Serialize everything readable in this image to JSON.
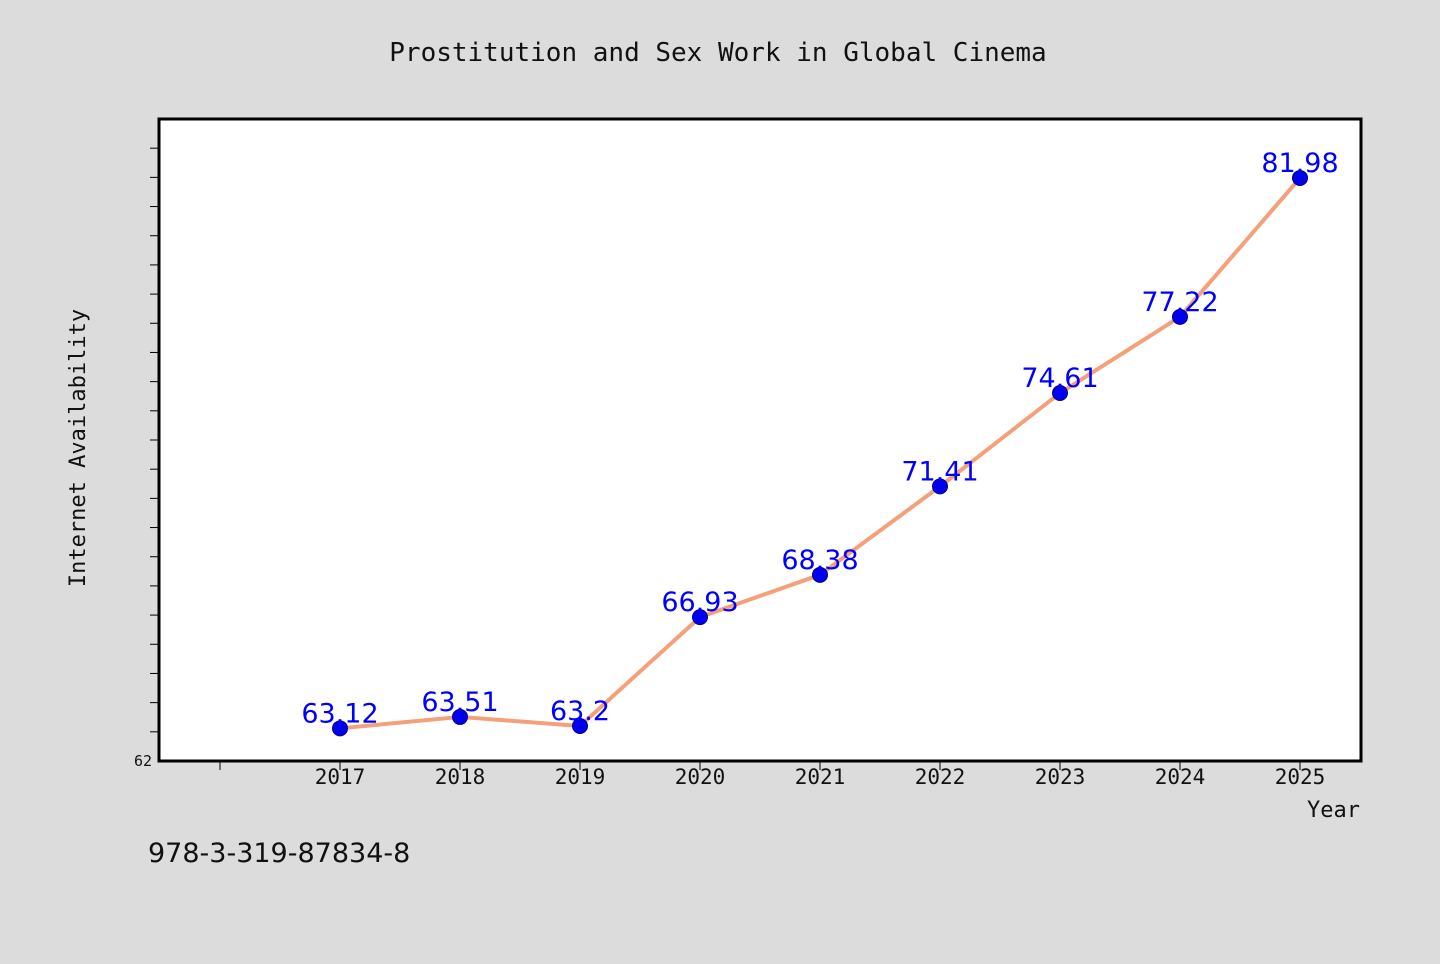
{
  "chart_data": {
    "type": "line",
    "title": "Prostitution and Sex Work in Global Cinema",
    "xlabel": "Year",
    "ylabel": "Internet Availability",
    "x": [
      "2017",
      "2018",
      "2019",
      "2020",
      "2021",
      "2022",
      "2023",
      "2024",
      "2025"
    ],
    "series": [
      {
        "values": [
          63.12,
          63.51,
          63.2,
          66.93,
          68.38,
          71.41,
          74.61,
          77.22,
          81.98
        ],
        "labels": [
          "63.12",
          "63.51",
          "63.2",
          "66.93",
          "68.38",
          "71.41",
          "74.61",
          "77.22",
          "81.98"
        ]
      }
    ],
    "y_tick_labels": [
      "62"
    ],
    "ylim": [
      62,
      84
    ],
    "grid": false,
    "legend": "none",
    "colors": {
      "line": "#f4a07a",
      "marker": "#0000ee",
      "data_label": "#0000ff",
      "background": "#dcdcdc",
      "plot_area": "#ffffff"
    }
  },
  "footer_text": "978-3-319-87834-8"
}
